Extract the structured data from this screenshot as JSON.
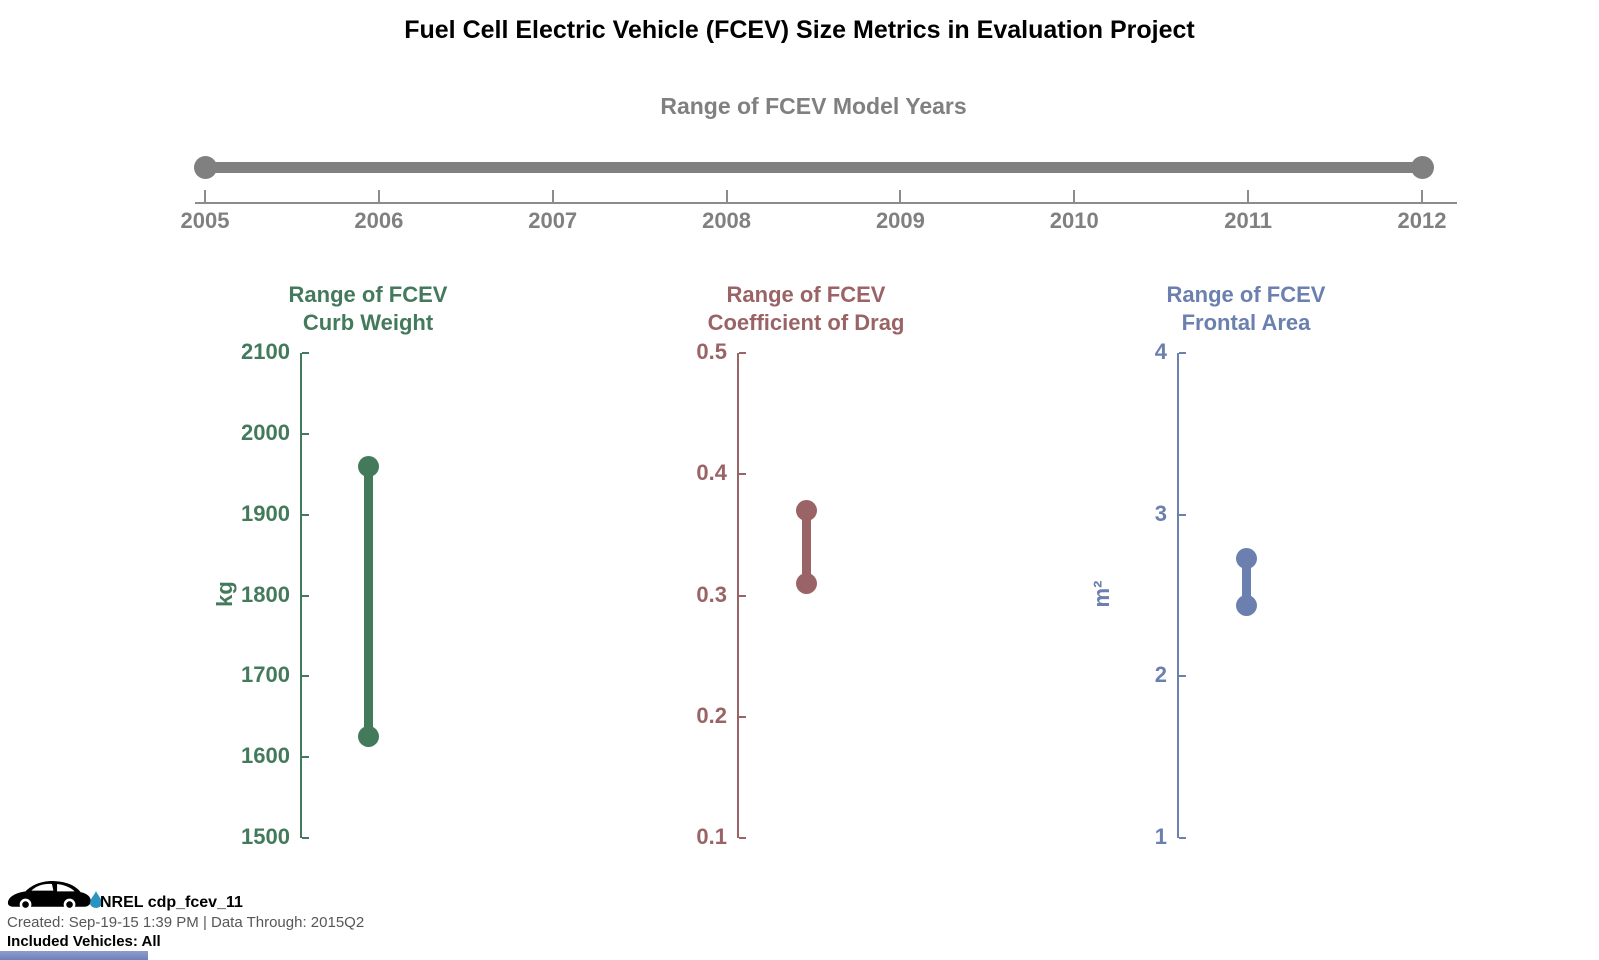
{
  "title": "Fuel Cell Electric Vehicle (FCEV) Size Metrics in Evaluation Project",
  "footer": {
    "program": "NREL cdp_fcev_11",
    "created_line": "Created: Sep-19-15  1:39 PM | Data Through: 2015Q2",
    "included": "Included Vehicles: All",
    "logo_icon": "car-icon",
    "droplet_icon": "water-droplet-icon",
    "accent_color": "#7f90c2"
  },
  "colors": {
    "timeline_gray": "#808080",
    "axis_gray": "#8c8c8c",
    "curb_weight_green": "#447a5c",
    "drag_maroon": "#9a6466",
    "frontal_blue": "#6b80af"
  },
  "chart_data": [
    {
      "type": "range",
      "orientation": "horizontal",
      "title": "Range of FCEV Model Years",
      "xlim": [
        2005,
        2012
      ],
      "xticks": [
        "2005",
        "2006",
        "2007",
        "2008",
        "2009",
        "2010",
        "2011",
        "2012"
      ],
      "range": {
        "min": 2005,
        "max": 2012
      },
      "color": "#808080",
      "axis_color": "#8c8c8c"
    },
    {
      "type": "range",
      "orientation": "vertical",
      "title_line1": "Range of FCEV",
      "title_line2": "Curb Weight",
      "ylabel": "kg",
      "ylim": [
        1500,
        2100
      ],
      "yticks": [
        "2100",
        "2000",
        "1900",
        "1800",
        "1700",
        "1600",
        "1500"
      ],
      "range": {
        "min": 1625,
        "max": 1960
      },
      "color": "#447a5c"
    },
    {
      "type": "range",
      "orientation": "vertical",
      "title_line1": "Range of FCEV",
      "title_line2": "Coefficient of Drag",
      "ylabel": "",
      "ylim": [
        0.1,
        0.5
      ],
      "yticks": [
        "0.5",
        "0.4",
        "0.3",
        "0.2",
        "0.1"
      ],
      "range": {
        "min": 0.31,
        "max": 0.37
      },
      "color": "#9a6466"
    },
    {
      "type": "range",
      "orientation": "vertical",
      "title_line1": "Range of FCEV",
      "title_line2": "Frontal Area",
      "ylabel": "m²",
      "ylim": [
        1,
        4
      ],
      "yticks": [
        "4",
        "3",
        "2",
        "1"
      ],
      "range": {
        "min": 2.44,
        "max": 2.73
      },
      "color": "#6b80af"
    }
  ]
}
